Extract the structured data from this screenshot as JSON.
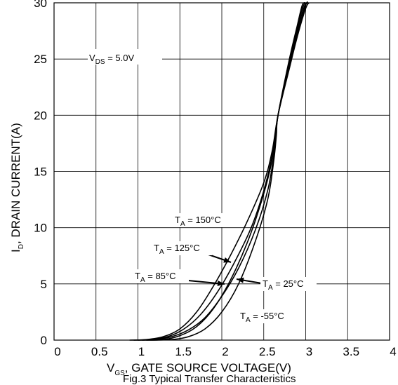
{
  "chart_data": {
    "type": "line",
    "xlabel": {
      "main": "V",
      "sub": "GS",
      "rest": ", GATE SOURCE VOLTAGE(V)"
    },
    "ylabel": {
      "main": "I",
      "sub": "D",
      "rest": ", DRAIN CURRENT(A)"
    },
    "xlim": [
      0,
      4
    ],
    "ylim": [
      0,
      30
    ],
    "x_ticks": [
      "0",
      "0.5",
      "1",
      "1.5",
      "2",
      "2.5",
      "3",
      "3.5",
      "4"
    ],
    "y_ticks": [
      "0",
      "5",
      "10",
      "15",
      "20",
      "25",
      "30"
    ],
    "grid": true,
    "annotations": {
      "vds": {
        "main": "V",
        "sub": "DS",
        "rest": " = 5.0V"
      },
      "t150": {
        "main": "T",
        "sub": "A",
        "rest": " = 150°C"
      },
      "t125": {
        "main": "T",
        "sub": "A",
        "rest": " = 125°C"
      },
      "t85": {
        "main": "T",
        "sub": "A",
        "rest": " = 85°C"
      },
      "t25": {
        "main": "T",
        "sub": "A",
        "rest": " = 25°C"
      },
      "tm55": {
        "main": "T",
        "sub": "A",
        "rest": " = -55°C"
      }
    },
    "series": [
      {
        "name": "T_A = 150°C",
        "x": [
          0.9,
          1.1,
          1.3,
          1.5,
          1.7,
          1.9,
          2.1,
          2.3,
          2.5,
          2.6,
          2.67,
          2.8,
          2.9,
          3.0,
          3.04
        ],
        "y": [
          0,
          0.05,
          0.3,
          1.0,
          2.5,
          4.8,
          7.5,
          10.5,
          14.0,
          16.8,
          20.0,
          24.0,
          27.0,
          29.5,
          30
        ]
      },
      {
        "name": "T_A = 125°C",
        "x": [
          0.95,
          1.15,
          1.35,
          1.55,
          1.75,
          1.95,
          2.15,
          2.35,
          2.5,
          2.6,
          2.67,
          2.8,
          2.9,
          3.0,
          3.03
        ],
        "y": [
          0,
          0.05,
          0.3,
          1.0,
          2.3,
          4.3,
          6.9,
          10.0,
          13.3,
          16.4,
          20.0,
          24.2,
          27.2,
          29.8,
          30
        ]
      },
      {
        "name": "T_A = 85°C",
        "x": [
          1.0,
          1.2,
          1.4,
          1.6,
          1.8,
          2.0,
          2.2,
          2.4,
          2.55,
          2.62,
          2.67,
          2.8,
          2.9,
          2.98,
          3.02
        ],
        "y": [
          0,
          0.05,
          0.3,
          0.9,
          2.0,
          3.9,
          6.4,
          9.8,
          13.4,
          16.5,
          20.0,
          24.4,
          27.5,
          29.6,
          30
        ]
      },
      {
        "name": "T_A = 25°C",
        "x": [
          1.05,
          1.3,
          1.5,
          1.7,
          1.9,
          2.1,
          2.3,
          2.45,
          2.57,
          2.63,
          2.67,
          2.8,
          2.9,
          2.97,
          3.01
        ],
        "y": [
          0,
          0.05,
          0.4,
          1.2,
          2.8,
          5.3,
          8.6,
          11.8,
          15.0,
          17.5,
          20.0,
          24.6,
          27.8,
          29.7,
          30
        ]
      },
      {
        "name": "T_A = -55°C",
        "x": [
          1.1,
          1.4,
          1.6,
          1.8,
          2.0,
          2.2,
          2.4,
          2.55,
          2.62,
          2.65,
          2.67,
          2.8,
          2.9,
          2.96,
          3.0
        ],
        "y": [
          0,
          0.05,
          0.3,
          1.0,
          2.5,
          5.0,
          8.8,
          12.6,
          16.0,
          18.2,
          20.0,
          24.8,
          28.0,
          29.8,
          30
        ]
      }
    ],
    "caption": "Fig.3 Typical Transfer Characteristics"
  }
}
